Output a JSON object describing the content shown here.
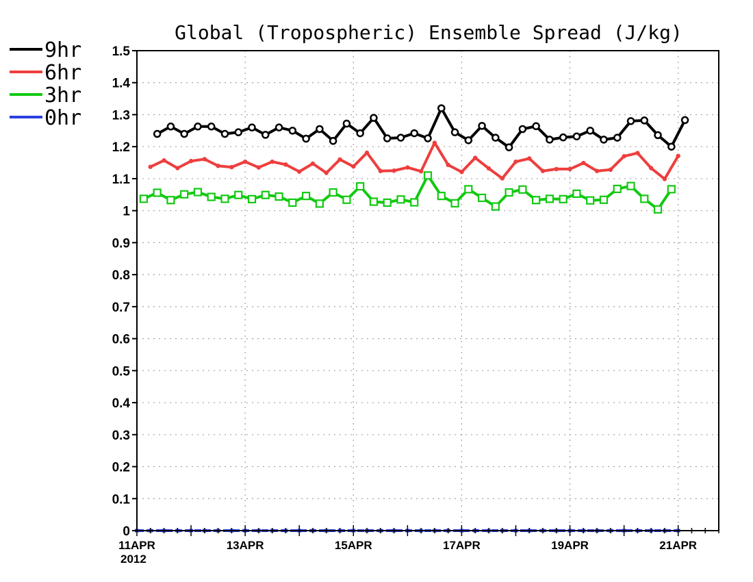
{
  "chart_data": {
    "type": "line",
    "title": "Global (Tropospheric) Ensemble Spread (J/kg)",
    "xlabel": "",
    "ylabel": "",
    "ylim": [
      0,
      1.5
    ],
    "yticks": [
      "0",
      "0.1",
      "0.2",
      "0.3",
      "0.4",
      "0.5",
      "0.6",
      "0.7",
      "0.8",
      "0.9",
      "1",
      "1.1",
      "1.2",
      "1.3",
      "1.4",
      "1.5"
    ],
    "x_start": "2012-04-11T00",
    "x_step_hours": 6,
    "xlim_index": [
      0,
      43
    ],
    "xtick_labels": [
      {
        "label": "11APR",
        "sub": "2012",
        "index": 0
      },
      {
        "label": "13APR",
        "sub": "",
        "index": 8
      },
      {
        "label": "15APR",
        "sub": "",
        "index": 16
      },
      {
        "label": "17APR",
        "sub": "",
        "index": 24
      },
      {
        "label": "19APR",
        "sub": "",
        "index": 32
      },
      {
        "label": "21APR",
        "sub": "",
        "index": 40
      }
    ],
    "grid": true,
    "legend_position": "top-left, outside plot",
    "series": [
      {
        "name": "9hr",
        "color": "#000000",
        "marker": "circle",
        "start_index": 1.5,
        "values": [
          1.24,
          1.263,
          1.24,
          1.263,
          1.263,
          1.24,
          1.245,
          1.26,
          1.237,
          1.26,
          1.25,
          1.225,
          1.255,
          1.218,
          1.272,
          1.242,
          1.29,
          1.226,
          1.228,
          1.242,
          1.226,
          1.32,
          1.245,
          1.22,
          1.265,
          1.228,
          1.198,
          1.255,
          1.264,
          1.222,
          1.229,
          1.232,
          1.25,
          1.222,
          1.228,
          1.28,
          1.282,
          1.236,
          1.2,
          1.283
        ]
      },
      {
        "name": "6hr",
        "color": "#ee3e3e",
        "marker": "dot",
        "start_index": 1,
        "values": [
          1.137,
          1.157,
          1.133,
          1.155,
          1.161,
          1.14,
          1.136,
          1.153,
          1.135,
          1.153,
          1.144,
          1.122,
          1.147,
          1.118,
          1.16,
          1.138,
          1.181,
          1.124,
          1.125,
          1.135,
          1.123,
          1.212,
          1.143,
          1.121,
          1.165,
          1.132,
          1.101,
          1.153,
          1.163,
          1.124,
          1.13,
          1.13,
          1.149,
          1.124,
          1.128,
          1.17,
          1.18,
          1.133,
          1.099,
          1.171
        ]
      },
      {
        "name": "3hr",
        "color": "#12c912",
        "marker": "square",
        "start_index": 0.5,
        "values": [
          1.037,
          1.056,
          1.033,
          1.051,
          1.058,
          1.043,
          1.037,
          1.049,
          1.036,
          1.049,
          1.044,
          1.025,
          1.046,
          1.022,
          1.057,
          1.034,
          1.076,
          1.028,
          1.025,
          1.035,
          1.026,
          1.11,
          1.046,
          1.023,
          1.067,
          1.04,
          1.013,
          1.057,
          1.066,
          1.033,
          1.037,
          1.036,
          1.053,
          1.032,
          1.034,
          1.068,
          1.077,
          1.037,
          1.004,
          1.067
        ]
      },
      {
        "name": "0hr",
        "color": "#2b3fe0",
        "marker": "dash",
        "start_index": 0,
        "values": [
          0,
          0,
          0,
          0,
          0,
          0,
          0,
          0,
          0,
          0,
          0,
          0,
          0,
          0,
          0,
          0,
          0,
          0,
          0,
          0,
          0,
          0,
          0,
          0,
          0,
          0,
          0,
          0,
          0,
          0,
          0,
          0,
          0,
          0,
          0,
          0,
          0,
          0,
          0,
          0,
          0
        ]
      }
    ]
  }
}
